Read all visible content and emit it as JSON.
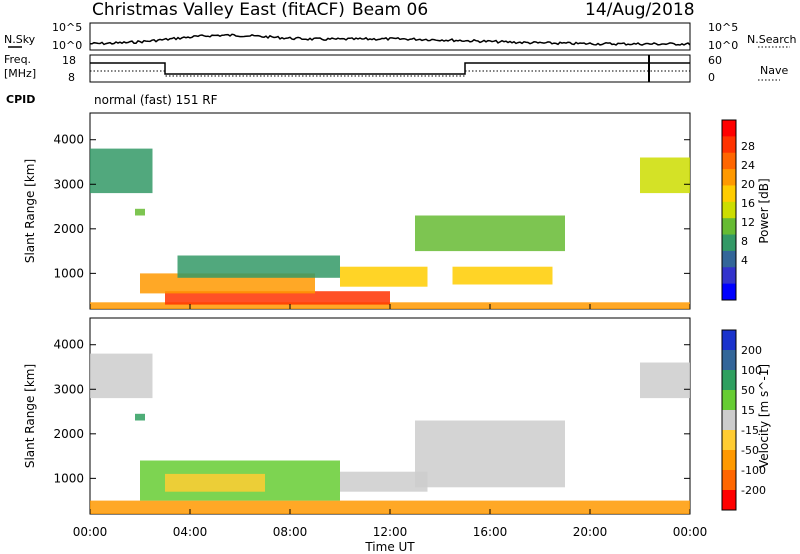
{
  "header": {
    "title": "Christmas Valley East (fitACF)",
    "beam": "Beam 06",
    "date": "14/Aug/2018"
  },
  "strip": {
    "nsky_label": "N.Sky",
    "nsearch_label": "N.Search",
    "nsky_left_top": "10^5",
    "nsky_left_bottom": "10^0",
    "nsky_right_top": "10^5",
    "nsky_right_bottom": "10^0",
    "freq_label_1": "Freq.",
    "freq_label_2": "[MHz]",
    "freq_left_top": "18",
    "freq_left_bottom": "8",
    "nave_label": "Nave",
    "nave_right_top": "60",
    "nave_right_bottom": "0",
    "cpid_label": "CPID",
    "cpid_value": "normal (fast) 151 RF"
  },
  "x_axis": {
    "label": "Time UT",
    "ticks": [
      "00:00",
      "04:00",
      "08:00",
      "12:00",
      "16:00",
      "20:00",
      "00:00"
    ]
  },
  "power_colorbar": {
    "label": "Power [dB]",
    "ticks": [
      "28",
      "24",
      "20",
      "16",
      "12",
      "8",
      "4"
    ],
    "colors": [
      "#ff0000",
      "#ff3300",
      "#ff6600",
      "#ff9900",
      "#ffcc00",
      "#ccdd00",
      "#66bb33",
      "#339966",
      "#336699",
      "#3333cc",
      "#0000ff"
    ]
  },
  "velocity_colorbar": {
    "label": "Velocity [m s^-1]",
    "ticks": [
      "200",
      "100",
      "50",
      "15",
      "-15",
      "-50",
      "-100",
      "-200"
    ],
    "colors": [
      "#1a33cc",
      "#336699",
      "#2f9f5f",
      "#66cc33",
      "#cccccc",
      "#ffcc33",
      "#ff9900",
      "#ff6600",
      "#ff0000"
    ]
  },
  "chart_data": [
    {
      "type": "heatmap",
      "panel": "power",
      "ylabel": "Slant Range [km]",
      "yticks": [
        1000,
        2000,
        3000,
        4000
      ],
      "ylim": [
        200,
        4600
      ],
      "xlim": [
        0,
        24
      ],
      "regions": [
        {
          "t0": 0.0,
          "t1": 24.0,
          "r0": 200,
          "r1": 350,
          "value": 22
        },
        {
          "t0": 3.0,
          "t1": 12.0,
          "r0": 300,
          "r1": 600,
          "value": 27
        },
        {
          "t0": 2.0,
          "t1": 9.0,
          "r0": 550,
          "r1": 1000,
          "value": 20
        },
        {
          "t0": 3.5,
          "t1": 10.0,
          "r0": 900,
          "r1": 1400,
          "value": 10
        },
        {
          "t0": 10.0,
          "t1": 13.5,
          "r0": 700,
          "r1": 1150,
          "value": 18
        },
        {
          "t0": 14.5,
          "t1": 18.5,
          "r0": 750,
          "r1": 1150,
          "value": 19
        },
        {
          "t0": 13.0,
          "t1": 19.0,
          "r0": 1500,
          "r1": 2300,
          "value": 11
        },
        {
          "t0": 0.0,
          "t1": 2.5,
          "r0": 2800,
          "r1": 3800,
          "value": 9
        },
        {
          "t0": 22.0,
          "t1": 24.0,
          "r0": 2800,
          "r1": 3600,
          "value": 14
        },
        {
          "t0": 1.8,
          "t1": 2.2,
          "r0": 2300,
          "r1": 2450,
          "value": 12
        }
      ]
    },
    {
      "type": "heatmap",
      "panel": "velocity",
      "ylabel": "Slant Range [km]",
      "yticks": [
        1000,
        2000,
        3000,
        4000
      ],
      "ylim": [
        200,
        4600
      ],
      "xlim": [
        0,
        24
      ],
      "regions": [
        {
          "t0": 0.0,
          "t1": 24.0,
          "r0": 200,
          "r1": 500,
          "value": -60
        },
        {
          "t0": 2.0,
          "t1": 10.0,
          "r0": 500,
          "r1": 1400,
          "value": 30
        },
        {
          "t0": 3.0,
          "t1": 7.0,
          "r0": 700,
          "r1": 1100,
          "value": -40
        },
        {
          "t0": 10.0,
          "t1": 13.5,
          "r0": 700,
          "r1": 1150,
          "value": 0
        },
        {
          "t0": 13.0,
          "t1": 19.0,
          "r0": 800,
          "r1": 2300,
          "value": 0
        },
        {
          "t0": 0.0,
          "t1": 2.5,
          "r0": 2800,
          "r1": 3800,
          "value": 0
        },
        {
          "t0": 22.0,
          "t1": 24.0,
          "r0": 2800,
          "r1": 3600,
          "value": 0
        },
        {
          "t0": 1.8,
          "t1": 2.2,
          "r0": 2300,
          "r1": 2450,
          "value": 60
        }
      ]
    }
  ]
}
